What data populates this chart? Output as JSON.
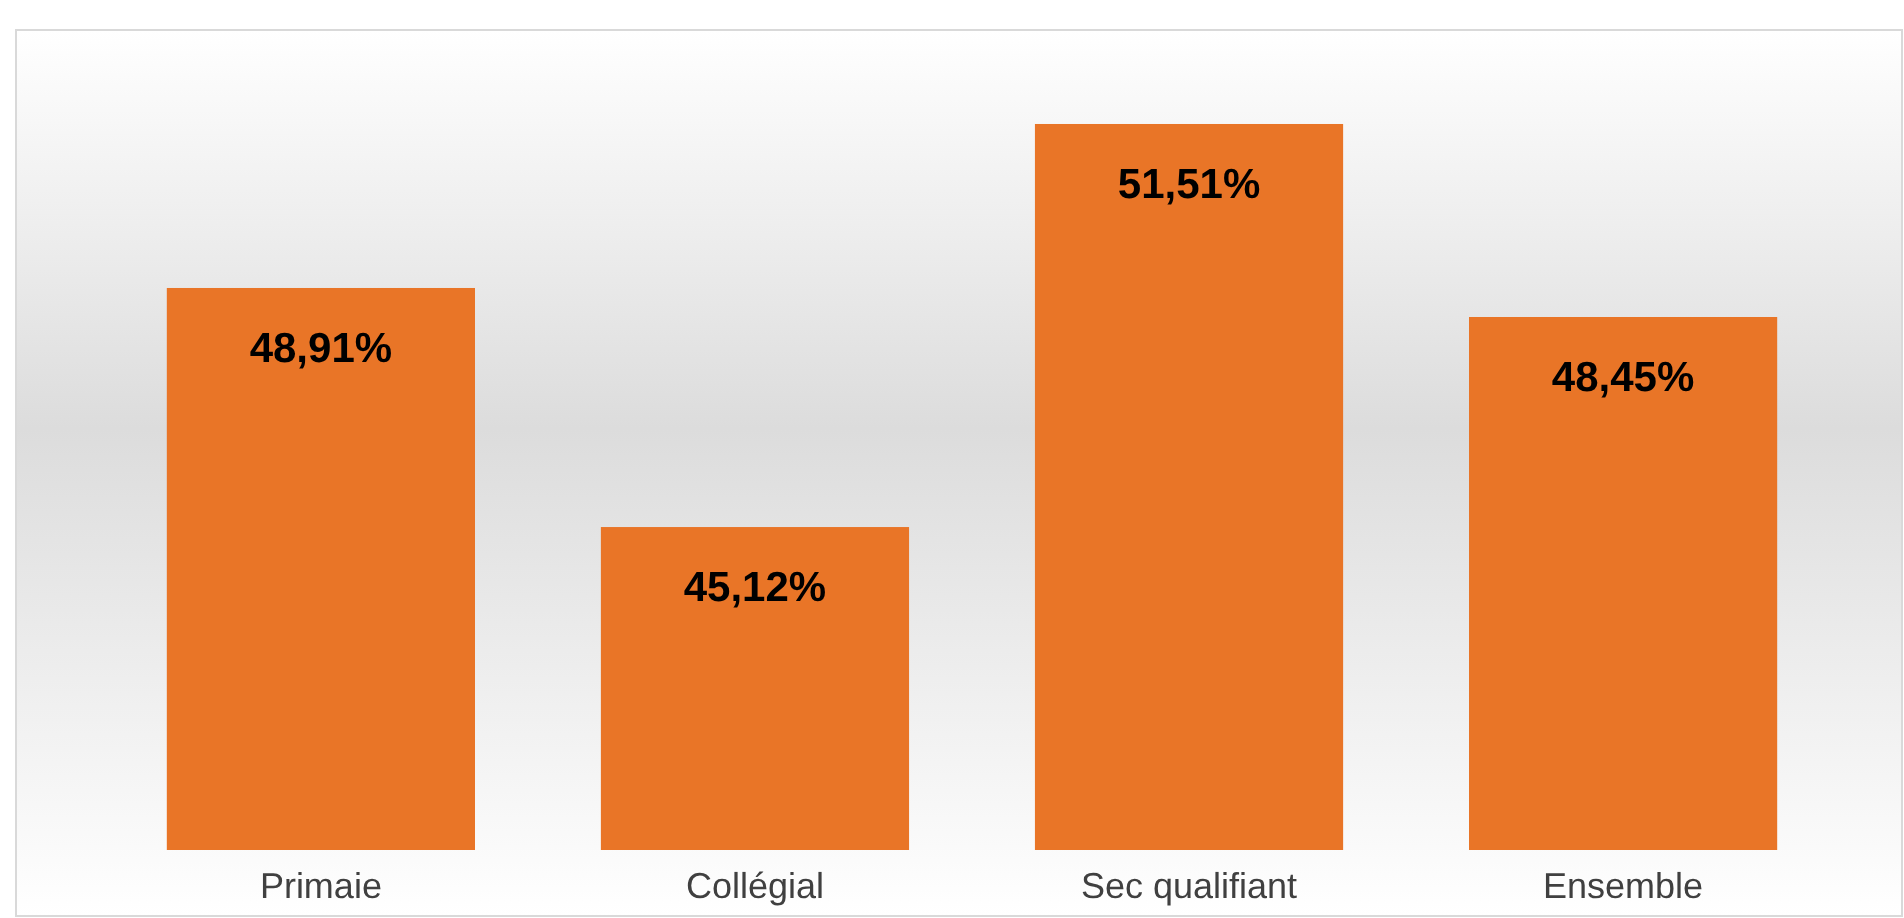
{
  "chart_data": {
    "type": "bar",
    "categories": [
      "Primaie",
      "Collégial",
      "Sec qualifiant",
      "Ensemble"
    ],
    "values": [
      48.91,
      45.12,
      51.51,
      48.45
    ],
    "color": "#e97527",
    "value_labels": [
      "48,91%",
      "45,12%",
      "51,51%",
      "48,45%"
    ],
    "ylim": [
      40,
      53
    ]
  }
}
